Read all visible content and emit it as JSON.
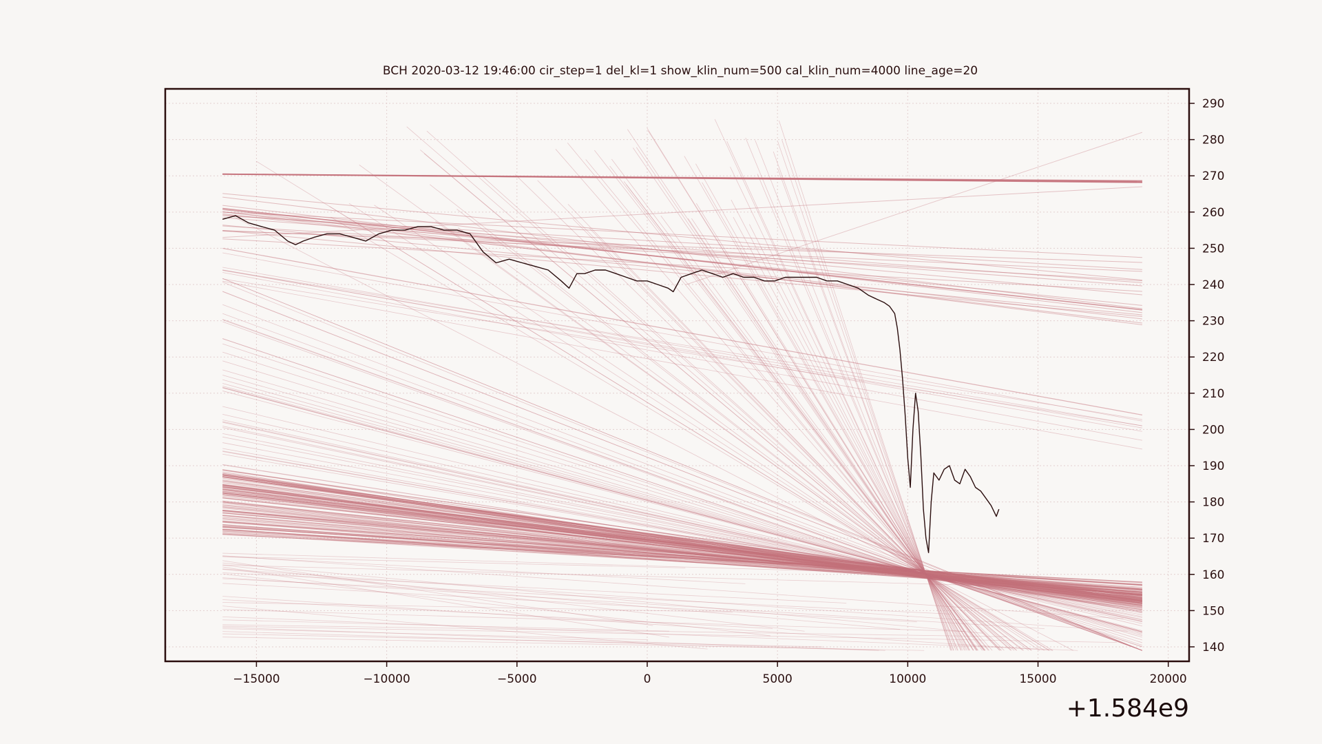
{
  "chart_data": {
    "type": "line",
    "title": "BCH    2020-03-12 19:46:00 cir_step=1 del_kl=1 show_klin_num=500 cal_klin_num=4000 line_age=20",
    "xlabel": "",
    "ylabel": "",
    "x_offset_label": "+1.584e9",
    "xlim": [
      -18500,
      20800
    ],
    "ylim": [
      136,
      294
    ],
    "x_ticks": [
      -15000,
      -10000,
      -5000,
      0,
      5000,
      10000,
      15000,
      20000
    ],
    "x_tick_labels": [
      "−15000",
      "−10000",
      "−5000",
      "0",
      "5000",
      "10000",
      "15000",
      "20000"
    ],
    "y_ticks": [
      140,
      150,
      160,
      170,
      180,
      190,
      200,
      210,
      220,
      230,
      240,
      250,
      260,
      270,
      280,
      290
    ],
    "y_tick_labels": [
      "140",
      "150",
      "160",
      "170",
      "180",
      "190",
      "200",
      "210",
      "220",
      "230",
      "240",
      "250",
      "260",
      "270",
      "280",
      "290"
    ],
    "y_axis_side": "right",
    "grid": true,
    "series": [
      {
        "color": "#2a0d0d",
        "x": [
          -16300,
          -15800,
          -15300,
          -14800,
          -14300,
          -13800,
          -13500,
          -13200,
          -12800,
          -12300,
          -11800,
          -11300,
          -10800,
          -10300,
          -9800,
          -9300,
          -8800,
          -8300,
          -7800,
          -7300,
          -6800,
          -6300,
          -5800,
          -5300,
          -4800,
          -4300,
          -3800,
          -3300,
          -3000,
          -2700,
          -2400,
          -2000,
          -1600,
          -1200,
          -800,
          -400,
          0,
          400,
          800,
          1000,
          1300,
          1700,
          2100,
          2500,
          2900,
          3300,
          3700,
          4100,
          4500,
          4900,
          5300,
          5700,
          6100,
          6500,
          6900,
          7300,
          7700,
          8100,
          8500,
          8800,
          9100,
          9300,
          9500,
          9600,
          9700,
          9800,
          9900,
          10000,
          10100,
          10200,
          10300,
          10400,
          10500,
          10600,
          10700,
          10800,
          10900,
          11000,
          11200,
          11400,
          11600,
          11800,
          12000,
          12200,
          12400,
          12600,
          12800,
          13000,
          13200,
          13400,
          13500
        ],
        "values": [
          258,
          259,
          257,
          256,
          255,
          252,
          251,
          252,
          253,
          254,
          254,
          253,
          252,
          254,
          255,
          255,
          256,
          256,
          255,
          255,
          254,
          249,
          246,
          247,
          246,
          245,
          244,
          241,
          239,
          243,
          243,
          244,
          244,
          243,
          242,
          241,
          241,
          240,
          239,
          238,
          242,
          243,
          244,
          243,
          242,
          243,
          242,
          242,
          241,
          241,
          242,
          242,
          242,
          242,
          241,
          241,
          240,
          239,
          237,
          236,
          235,
          234,
          232,
          228,
          222,
          214,
          204,
          192,
          184,
          200,
          210,
          205,
          193,
          178,
          170,
          166,
          180,
          188,
          186,
          189,
          190,
          186,
          185,
          189,
          187,
          184,
          183,
          181,
          179,
          176,
          178
        ]
      }
    ]
  }
}
